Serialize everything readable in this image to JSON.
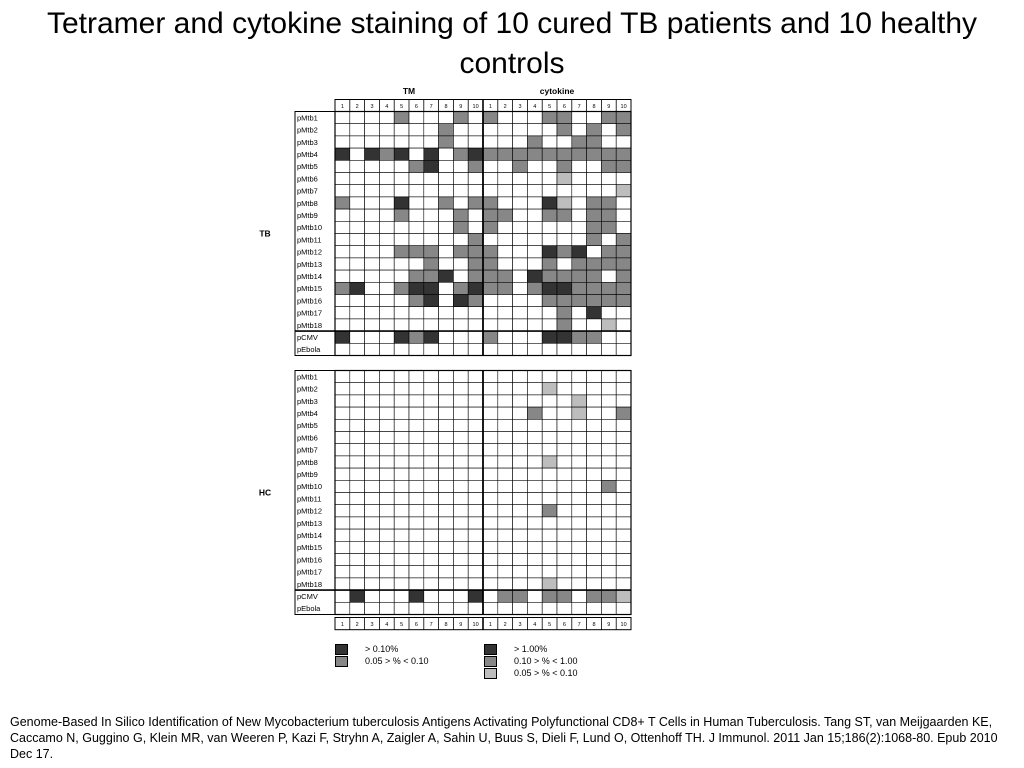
{
  "slide": {
    "title": "Tetramer and cytokine staining of 10 cured TB patients and 10 healthy controls",
    "citation": "Genome-Based In Silico Identification of New Mycobacterium tuberculosis Antigens Activating Polyfunctional CD8+ T Cells in Human Tuberculosis. Tang ST, van Meijgaarden KE, Caccamo N, Guggino G, Klein MR, van Weeren P, Kazi F, Stryhn A, Zaigler A, Sahin U, Buus S, Dieli F, Lund O, Ottenhoff TH. J Immunol. 2011 Jan 15;186(2):1068-80. Epub 2010 Dec 17."
  },
  "chart_data": {
    "type": "heatmap",
    "column_groups": [
      "TM",
      "cytokine"
    ],
    "columns": [
      "1",
      "2",
      "3",
      "4",
      "5",
      "6",
      "7",
      "8",
      "9",
      "10"
    ],
    "rows": [
      "pMtb1",
      "pMtb2",
      "pMtb3",
      "pMtb4",
      "pMtb5",
      "pMtb6",
      "pMtb7",
      "pMtb8",
      "pMtb9",
      "pMtb10",
      "pMtb11",
      "pMtb12",
      "pMtb13",
      "pMtb14",
      "pMtb15",
      "pMtb16",
      "pMtb17",
      "pMtb18",
      "pCMV",
      "pEbola"
    ],
    "value_encoding": {
      "0": "none",
      "TM": {
        "3": "> 0.10%",
        "2": "0.05 > % < 0.10"
      },
      "cytokine": {
        "3": "> 1.00%",
        "2": "0.10 > % < 1.00",
        "1": "0.05 > % < 0.10"
      }
    },
    "colors": {
      "0": "#ffffff",
      "1": "#bdbdbd",
      "2": "#878787",
      "3": "#333333"
    },
    "panels": [
      {
        "label": "TB",
        "TM": [
          [
            0,
            0,
            0,
            0,
            2,
            0,
            0,
            0,
            2,
            0
          ],
          [
            0,
            0,
            0,
            0,
            0,
            0,
            0,
            2,
            0,
            0
          ],
          [
            0,
            0,
            0,
            0,
            0,
            0,
            0,
            2,
            0,
            0
          ],
          [
            3,
            0,
            3,
            2,
            3,
            0,
            3,
            0,
            2,
            3
          ],
          [
            0,
            0,
            0,
            0,
            0,
            2,
            3,
            0,
            0,
            2
          ],
          [
            0,
            0,
            0,
            0,
            0,
            0,
            0,
            0,
            0,
            0
          ],
          [
            0,
            0,
            0,
            0,
            0,
            0,
            0,
            0,
            0,
            0
          ],
          [
            2,
            0,
            0,
            0,
            3,
            0,
            0,
            2,
            0,
            2
          ],
          [
            0,
            0,
            0,
            0,
            2,
            0,
            0,
            0,
            2,
            0
          ],
          [
            0,
            0,
            0,
            0,
            0,
            0,
            0,
            0,
            2,
            0
          ],
          [
            0,
            0,
            0,
            0,
            0,
            0,
            0,
            0,
            0,
            2
          ],
          [
            0,
            0,
            0,
            0,
            2,
            2,
            2,
            0,
            2,
            2
          ],
          [
            0,
            0,
            0,
            0,
            0,
            0,
            2,
            0,
            0,
            2
          ],
          [
            0,
            0,
            0,
            0,
            0,
            2,
            2,
            3,
            0,
            2
          ],
          [
            2,
            3,
            0,
            0,
            2,
            3,
            3,
            0,
            2,
            3
          ],
          [
            0,
            0,
            0,
            0,
            0,
            2,
            3,
            0,
            3,
            2
          ],
          [
            0,
            0,
            0,
            0,
            0,
            0,
            0,
            0,
            0,
            0
          ],
          [
            0,
            0,
            0,
            0,
            0,
            0,
            0,
            0,
            0,
            0
          ],
          [
            3,
            0,
            0,
            0,
            3,
            2,
            3,
            0,
            0,
            0
          ],
          [
            0,
            0,
            0,
            0,
            0,
            0,
            0,
            0,
            0,
            0
          ]
        ],
        "cytokine": [
          [
            2,
            0,
            0,
            0,
            2,
            2,
            0,
            0,
            2,
            2
          ],
          [
            0,
            0,
            0,
            0,
            0,
            2,
            0,
            2,
            0,
            2
          ],
          [
            0,
            0,
            0,
            2,
            0,
            0,
            2,
            2,
            0,
            0
          ],
          [
            2,
            2,
            2,
            2,
            2,
            2,
            2,
            2,
            2,
            2
          ],
          [
            0,
            0,
            2,
            0,
            0,
            2,
            0,
            0,
            2,
            2
          ],
          [
            0,
            0,
            0,
            0,
            0,
            1,
            0,
            0,
            0,
            0
          ],
          [
            0,
            0,
            0,
            0,
            0,
            0,
            0,
            0,
            0,
            1
          ],
          [
            2,
            0,
            0,
            0,
            3,
            1,
            0,
            2,
            2,
            0
          ],
          [
            2,
            2,
            0,
            0,
            2,
            2,
            0,
            2,
            2,
            0
          ],
          [
            2,
            0,
            0,
            0,
            0,
            0,
            0,
            2,
            2,
            0
          ],
          [
            0,
            0,
            0,
            0,
            0,
            0,
            0,
            2,
            0,
            2
          ],
          [
            2,
            0,
            0,
            0,
            3,
            2,
            3,
            0,
            2,
            2
          ],
          [
            2,
            0,
            0,
            0,
            2,
            0,
            2,
            2,
            2,
            2
          ],
          [
            2,
            2,
            0,
            3,
            2,
            2,
            2,
            2,
            0,
            2
          ],
          [
            2,
            2,
            0,
            2,
            3,
            3,
            2,
            2,
            2,
            2
          ],
          [
            0,
            0,
            0,
            0,
            2,
            2,
            2,
            2,
            2,
            2
          ],
          [
            0,
            0,
            0,
            0,
            0,
            2,
            0,
            3,
            0,
            0
          ],
          [
            0,
            0,
            0,
            0,
            0,
            2,
            0,
            0,
            1,
            0
          ],
          [
            2,
            0,
            0,
            0,
            3,
            3,
            2,
            2,
            0,
            0
          ],
          [
            0,
            0,
            0,
            0,
            0,
            0,
            0,
            0,
            0,
            0
          ]
        ]
      },
      {
        "label": "HC",
        "TM": [
          [
            0,
            0,
            0,
            0,
            0,
            0,
            0,
            0,
            0,
            0
          ],
          [
            0,
            0,
            0,
            0,
            0,
            0,
            0,
            0,
            0,
            0
          ],
          [
            0,
            0,
            0,
            0,
            0,
            0,
            0,
            0,
            0,
            0
          ],
          [
            0,
            0,
            0,
            0,
            0,
            0,
            0,
            0,
            0,
            0
          ],
          [
            0,
            0,
            0,
            0,
            0,
            0,
            0,
            0,
            0,
            0
          ],
          [
            0,
            0,
            0,
            0,
            0,
            0,
            0,
            0,
            0,
            0
          ],
          [
            0,
            0,
            0,
            0,
            0,
            0,
            0,
            0,
            0,
            0
          ],
          [
            0,
            0,
            0,
            0,
            0,
            0,
            0,
            0,
            0,
            0
          ],
          [
            0,
            0,
            0,
            0,
            0,
            0,
            0,
            0,
            0,
            0
          ],
          [
            0,
            0,
            0,
            0,
            0,
            0,
            0,
            0,
            0,
            0
          ],
          [
            0,
            0,
            0,
            0,
            0,
            0,
            0,
            0,
            0,
            0
          ],
          [
            0,
            0,
            0,
            0,
            0,
            0,
            0,
            0,
            0,
            0
          ],
          [
            0,
            0,
            0,
            0,
            0,
            0,
            0,
            0,
            0,
            0
          ],
          [
            0,
            0,
            0,
            0,
            0,
            0,
            0,
            0,
            0,
            0
          ],
          [
            0,
            0,
            0,
            0,
            0,
            0,
            0,
            0,
            0,
            0
          ],
          [
            0,
            0,
            0,
            0,
            0,
            0,
            0,
            0,
            0,
            0
          ],
          [
            0,
            0,
            0,
            0,
            0,
            0,
            0,
            0,
            0,
            0
          ],
          [
            0,
            0,
            0,
            0,
            0,
            0,
            0,
            0,
            0,
            0
          ],
          [
            0,
            3,
            0,
            0,
            0,
            3,
            0,
            0,
            0,
            3
          ],
          [
            0,
            0,
            0,
            0,
            0,
            0,
            0,
            0,
            0,
            0
          ]
        ],
        "cytokine": [
          [
            0,
            0,
            0,
            0,
            0,
            0,
            0,
            0,
            0,
            0
          ],
          [
            0,
            0,
            0,
            0,
            1,
            0,
            0,
            0,
            0,
            0
          ],
          [
            0,
            0,
            0,
            0,
            0,
            0,
            1,
            0,
            0,
            0
          ],
          [
            0,
            0,
            0,
            2,
            0,
            0,
            1,
            0,
            0,
            2
          ],
          [
            0,
            0,
            0,
            0,
            0,
            0,
            0,
            0,
            0,
            0
          ],
          [
            0,
            0,
            0,
            0,
            0,
            0,
            0,
            0,
            0,
            0
          ],
          [
            0,
            0,
            0,
            0,
            0,
            0,
            0,
            0,
            0,
            0
          ],
          [
            0,
            0,
            0,
            0,
            1,
            0,
            0,
            0,
            0,
            0
          ],
          [
            0,
            0,
            0,
            0,
            0,
            0,
            0,
            0,
            0,
            0
          ],
          [
            0,
            0,
            0,
            0,
            0,
            0,
            0,
            0,
            2,
            0
          ],
          [
            0,
            0,
            0,
            0,
            0,
            0,
            0,
            0,
            0,
            0
          ],
          [
            0,
            0,
            0,
            0,
            2,
            0,
            0,
            0,
            0,
            0
          ],
          [
            0,
            0,
            0,
            0,
            0,
            0,
            0,
            0,
            0,
            0
          ],
          [
            0,
            0,
            0,
            0,
            0,
            0,
            0,
            0,
            0,
            0
          ],
          [
            0,
            0,
            0,
            0,
            0,
            0,
            0,
            0,
            0,
            0
          ],
          [
            0,
            0,
            0,
            0,
            0,
            0,
            0,
            0,
            0,
            0
          ],
          [
            0,
            0,
            0,
            0,
            0,
            0,
            0,
            0,
            0,
            0
          ],
          [
            0,
            0,
            0,
            0,
            1,
            0,
            0,
            0,
            0,
            0
          ],
          [
            0,
            2,
            2,
            0,
            2,
            2,
            0,
            2,
            2,
            1
          ],
          [
            0,
            0,
            0,
            0,
            0,
            0,
            0,
            0,
            0,
            0
          ]
        ]
      }
    ],
    "legend": {
      "TM": [
        {
          "label": "> 0.10%",
          "level": 3
        },
        {
          "label": "0.05 > % < 0.10",
          "level": 2
        }
      ],
      "cytokine": [
        {
          "label": "> 1.00%",
          "level": 3
        },
        {
          "label": "0.10 > % < 1.00",
          "level": 2
        },
        {
          "label": "0.05 > % < 0.10",
          "level": 1
        }
      ]
    }
  }
}
